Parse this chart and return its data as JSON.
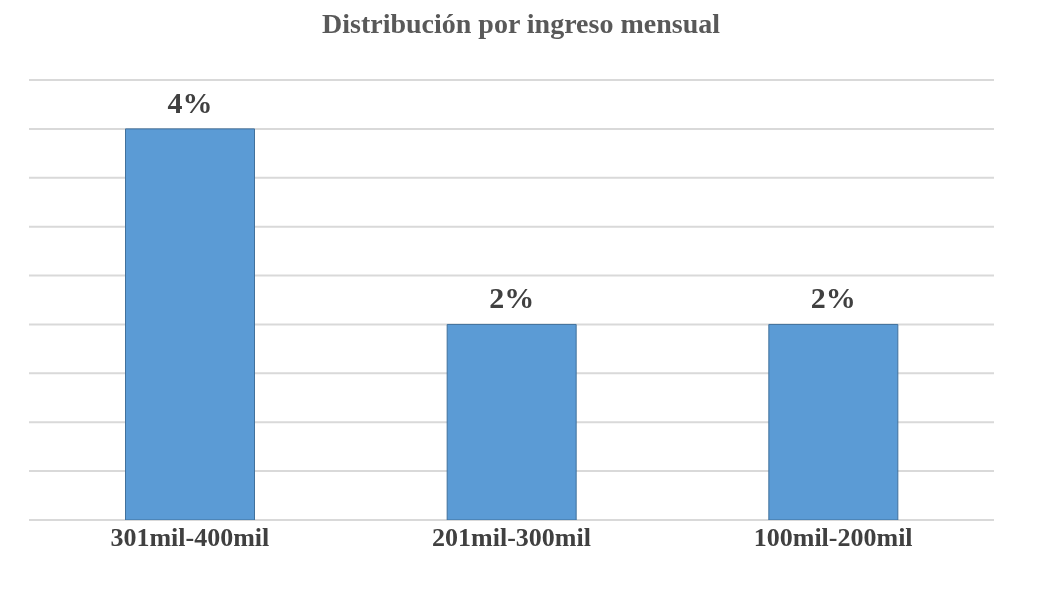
{
  "chart_data": {
    "type": "bar",
    "title": "Distribución por ingreso mensual",
    "categories": [
      "301mil-400mil",
      "201mil-300mil",
      "100mil-200mil"
    ],
    "values": [
      4,
      2,
      2
    ],
    "color": "#5b9bd5",
    "value_labels": [
      "4%",
      "2%",
      "2%"
    ],
    "ylim": [
      0,
      4.5
    ],
    "yticks": [
      {
        "value": 0,
        "label": null
      },
      {
        "value": 0.5,
        "label": null
      },
      {
        "value": 1,
        "label": null
      },
      {
        "value": 1.5,
        "label": null
      },
      {
        "value": 2,
        "label": null
      },
      {
        "value": 2.5,
        "label": null
      },
      {
        "value": 3,
        "label": null
      },
      {
        "value": 3.5,
        "label": null
      },
      {
        "value": 4,
        "label": null
      },
      {
        "value": 4.5,
        "label": null
      }
    ],
    "grid": "y",
    "tick_labels": "x",
    "legend": false
  }
}
